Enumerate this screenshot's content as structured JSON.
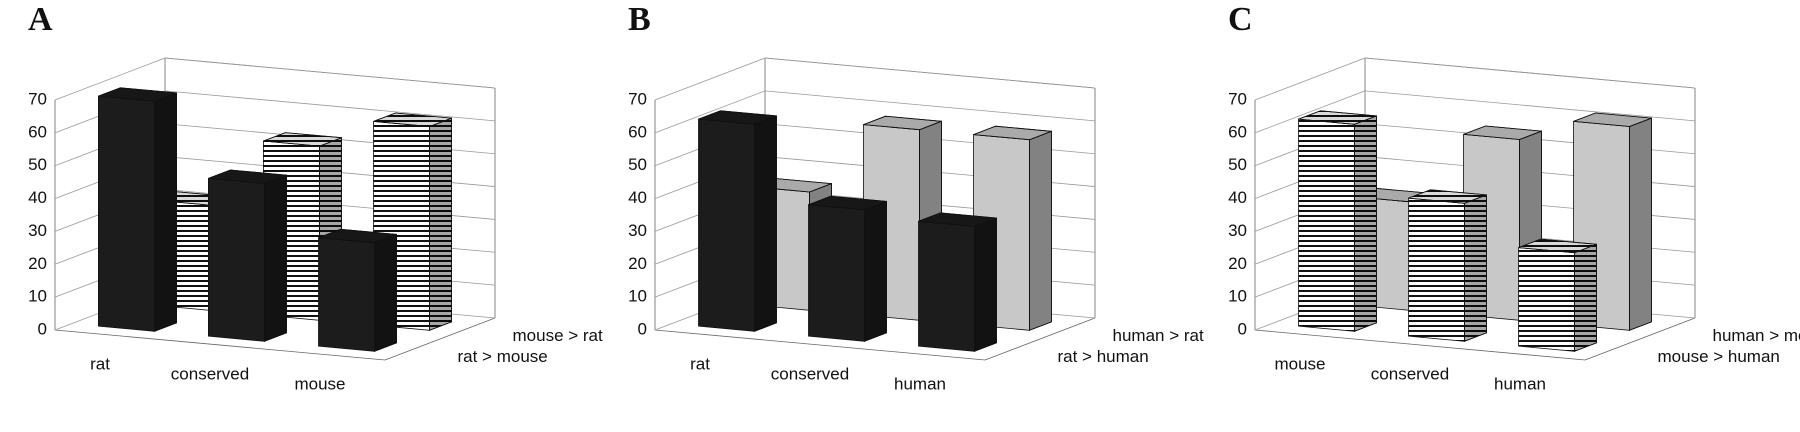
{
  "chart_data": [
    {
      "type": "bar3d",
      "title": "A",
      "categories": [
        "rat",
        "conserved",
        "mouse"
      ],
      "series": [
        {
          "name": "rat > mouse",
          "color": "#1c1c1c",
          "values": [
            70,
            48,
            33
          ]
        },
        {
          "name": "mouse > rat",
          "color": "#ffffff",
          "hatch": "horizontal",
          "values": [
            32,
            53,
            62
          ]
        }
      ],
      "ylim": [
        0,
        70
      ],
      "yticks": [
        0,
        10,
        20,
        30,
        40,
        50,
        60,
        70
      ],
      "grid": true
    },
    {
      "type": "bar3d",
      "title": "B",
      "categories": [
        "rat",
        "conserved",
        "human"
      ],
      "series": [
        {
          "name": "rat > human",
          "color": "#1c1c1c",
          "values": [
            63,
            40,
            38
          ]
        },
        {
          "name": "human > rat",
          "color": "#c8c8c8",
          "values": [
            36,
            58,
            58
          ]
        }
      ],
      "ylim": [
        0,
        70
      ],
      "yticks": [
        0,
        10,
        20,
        30,
        40,
        50,
        60,
        70
      ],
      "grid": true
    },
    {
      "type": "bar3d",
      "title": "C",
      "categories": [
        "mouse",
        "conserved",
        "human"
      ],
      "series": [
        {
          "name": "mouse > human",
          "color": "#ffffff",
          "hatch": "horizontal",
          "values": [
            63,
            42,
            30
          ]
        },
        {
          "name": "human > mouse",
          "color": "#c8c8c8",
          "values": [
            33,
            55,
            62
          ]
        }
      ],
      "ylim": [
        0,
        70
      ],
      "yticks": [
        0,
        10,
        20,
        30,
        40,
        50,
        60,
        70
      ],
      "grid": true
    }
  ]
}
